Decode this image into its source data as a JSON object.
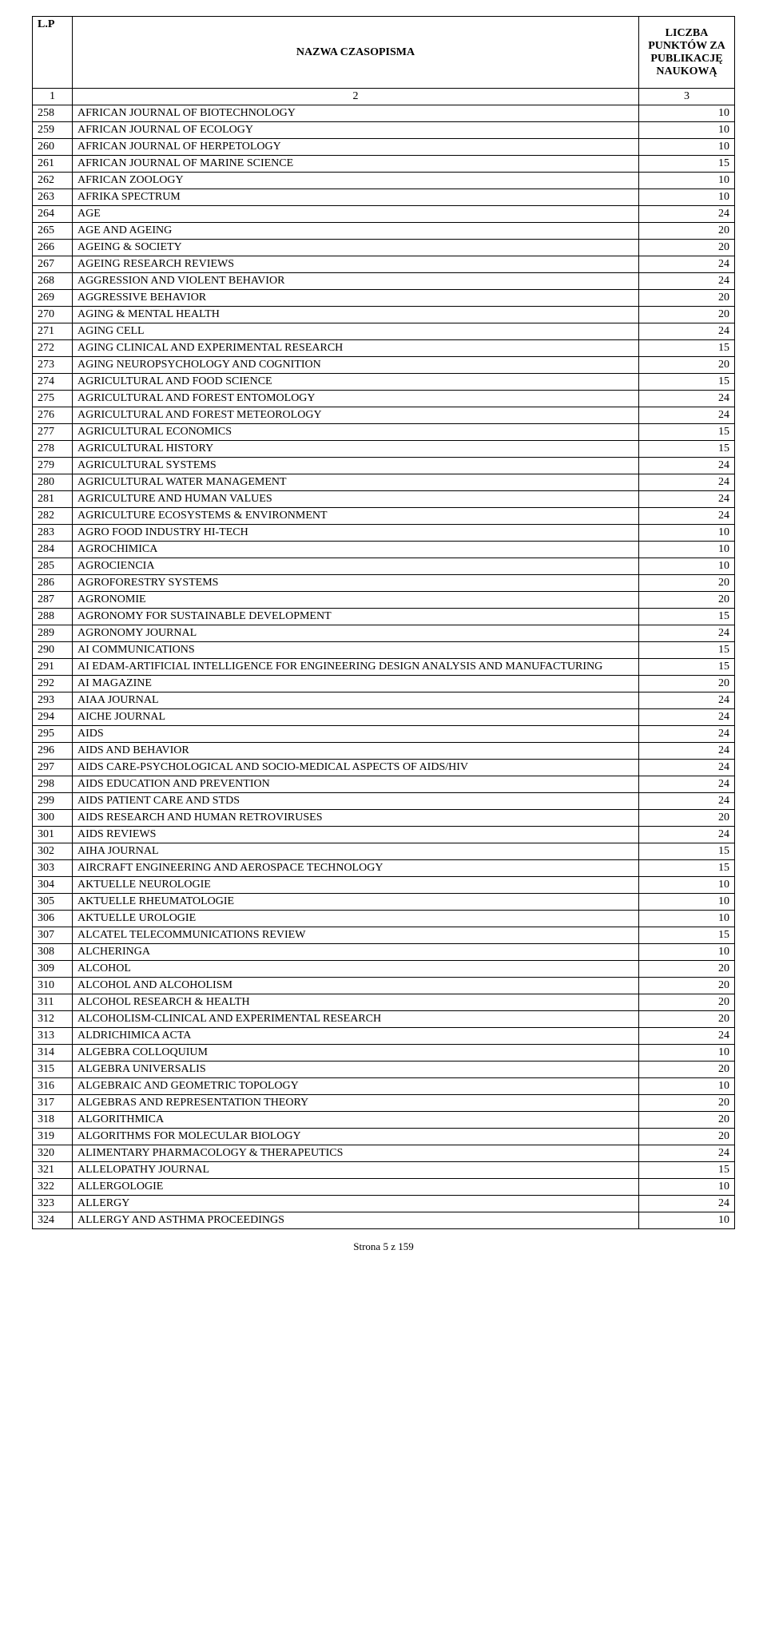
{
  "header": {
    "lp": "L.P",
    "name": "NAZWA CZASOPISMA",
    "points": "LICZBA PUNKTÓW ZA PUBLIKACJĘ NAUKOWĄ"
  },
  "subhead": {
    "c1": "1",
    "c2": "2",
    "c3": "3"
  },
  "rows": [
    {
      "n": "258",
      "t": "AFRICAN JOURNAL OF BIOTECHNOLOGY",
      "p": "10"
    },
    {
      "n": "259",
      "t": "AFRICAN JOURNAL OF ECOLOGY",
      "p": "10"
    },
    {
      "n": "260",
      "t": "AFRICAN JOURNAL OF HERPETOLOGY",
      "p": "10"
    },
    {
      "n": "261",
      "t": "AFRICAN JOURNAL OF MARINE SCIENCE",
      "p": "15"
    },
    {
      "n": "262",
      "t": "AFRICAN ZOOLOGY",
      "p": "10"
    },
    {
      "n": "263",
      "t": "AFRIKA SPECTRUM",
      "p": "10"
    },
    {
      "n": "264",
      "t": "AGE",
      "p": "24"
    },
    {
      "n": "265",
      "t": "AGE AND AGEING",
      "p": "20"
    },
    {
      "n": "266",
      "t": "AGEING & SOCIETY",
      "p": "20"
    },
    {
      "n": "267",
      "t": "AGEING RESEARCH REVIEWS",
      "p": "24"
    },
    {
      "n": "268",
      "t": "AGGRESSION AND VIOLENT BEHAVIOR",
      "p": "24"
    },
    {
      "n": "269",
      "t": "AGGRESSIVE BEHAVIOR",
      "p": "20"
    },
    {
      "n": "270",
      "t": "AGING & MENTAL HEALTH",
      "p": "20"
    },
    {
      "n": "271",
      "t": "AGING CELL",
      "p": "24"
    },
    {
      "n": "272",
      "t": "AGING CLINICAL AND EXPERIMENTAL RESEARCH",
      "p": "15"
    },
    {
      "n": "273",
      "t": "AGING NEUROPSYCHOLOGY AND COGNITION",
      "p": "20"
    },
    {
      "n": "274",
      "t": "AGRICULTURAL AND FOOD SCIENCE",
      "p": "15"
    },
    {
      "n": "275",
      "t": "AGRICULTURAL AND FOREST ENTOMOLOGY",
      "p": "24"
    },
    {
      "n": "276",
      "t": "AGRICULTURAL AND FOREST METEOROLOGY",
      "p": "24"
    },
    {
      "n": "277",
      "t": "AGRICULTURAL ECONOMICS",
      "p": "15"
    },
    {
      "n": "278",
      "t": "AGRICULTURAL HISTORY",
      "p": "15"
    },
    {
      "n": "279",
      "t": "AGRICULTURAL SYSTEMS",
      "p": "24"
    },
    {
      "n": "280",
      "t": "AGRICULTURAL WATER MANAGEMENT",
      "p": "24"
    },
    {
      "n": "281",
      "t": "AGRICULTURE AND HUMAN VALUES",
      "p": "24"
    },
    {
      "n": "282",
      "t": "AGRICULTURE ECOSYSTEMS & ENVIRONMENT",
      "p": "24"
    },
    {
      "n": "283",
      "t": "AGRO FOOD INDUSTRY HI-TECH",
      "p": "10"
    },
    {
      "n": "284",
      "t": "AGROCHIMICA",
      "p": "10"
    },
    {
      "n": "285",
      "t": "AGROCIENCIA",
      "p": "10"
    },
    {
      "n": "286",
      "t": "AGROFORESTRY SYSTEMS",
      "p": "20"
    },
    {
      "n": "287",
      "t": "AGRONOMIE",
      "p": "20"
    },
    {
      "n": "288",
      "t": "AGRONOMY FOR SUSTAINABLE DEVELOPMENT",
      "p": "15"
    },
    {
      "n": "289",
      "t": "AGRONOMY JOURNAL",
      "p": "24"
    },
    {
      "n": "290",
      "t": "AI COMMUNICATIONS",
      "p": "15"
    },
    {
      "n": "291",
      "t": "AI EDAM-ARTIFICIAL INTELLIGENCE FOR ENGINEERING DESIGN ANALYSIS AND MANUFACTURING",
      "p": "15"
    },
    {
      "n": "292",
      "t": "AI MAGAZINE",
      "p": "20"
    },
    {
      "n": "293",
      "t": "AIAA JOURNAL",
      "p": "24"
    },
    {
      "n": "294",
      "t": "AICHE JOURNAL",
      "p": "24"
    },
    {
      "n": "295",
      "t": "AIDS",
      "p": "24"
    },
    {
      "n": "296",
      "t": "AIDS AND BEHAVIOR",
      "p": "24"
    },
    {
      "n": "297",
      "t": "AIDS CARE-PSYCHOLOGICAL AND SOCIO-MEDICAL ASPECTS OF AIDS/HIV",
      "p": "24"
    },
    {
      "n": "298",
      "t": "AIDS EDUCATION AND PREVENTION",
      "p": "24"
    },
    {
      "n": "299",
      "t": "AIDS PATIENT CARE AND STDS",
      "p": "24"
    },
    {
      "n": "300",
      "t": "AIDS RESEARCH AND HUMAN RETROVIRUSES",
      "p": "20"
    },
    {
      "n": "301",
      "t": "AIDS REVIEWS",
      "p": "24"
    },
    {
      "n": "302",
      "t": "AIHA JOURNAL",
      "p": "15"
    },
    {
      "n": "303",
      "t": "AIRCRAFT ENGINEERING AND AEROSPACE TECHNOLOGY",
      "p": "15"
    },
    {
      "n": "304",
      "t": "AKTUELLE NEUROLOGIE",
      "p": "10"
    },
    {
      "n": "305",
      "t": "AKTUELLE RHEUMATOLOGIE",
      "p": "10"
    },
    {
      "n": "306",
      "t": "AKTUELLE UROLOGIE",
      "p": "10"
    },
    {
      "n": "307",
      "t": "ALCATEL TELECOMMUNICATIONS REVIEW",
      "p": "15"
    },
    {
      "n": "308",
      "t": "ALCHERINGA",
      "p": "10"
    },
    {
      "n": "309",
      "t": "ALCOHOL",
      "p": "20"
    },
    {
      "n": "310",
      "t": "ALCOHOL AND ALCOHOLISM",
      "p": "20"
    },
    {
      "n": "311",
      "t": "ALCOHOL RESEARCH & HEALTH",
      "p": "20"
    },
    {
      "n": "312",
      "t": "ALCOHOLISM-CLINICAL AND EXPERIMENTAL RESEARCH",
      "p": "20"
    },
    {
      "n": "313",
      "t": "ALDRICHIMICA ACTA",
      "p": "24"
    },
    {
      "n": "314",
      "t": "ALGEBRA COLLOQUIUM",
      "p": "10"
    },
    {
      "n": "315",
      "t": "ALGEBRA UNIVERSALIS",
      "p": "20"
    },
    {
      "n": "316",
      "t": "ALGEBRAIC AND GEOMETRIC TOPOLOGY",
      "p": "10"
    },
    {
      "n": "317",
      "t": "ALGEBRAS AND REPRESENTATION THEORY",
      "p": "20"
    },
    {
      "n": "318",
      "t": "ALGORITHMICA",
      "p": "20"
    },
    {
      "n": "319",
      "t": "ALGORITHMS FOR MOLECULAR BIOLOGY",
      "p": "20"
    },
    {
      "n": "320",
      "t": "ALIMENTARY PHARMACOLOGY & THERAPEUTICS",
      "p": "24"
    },
    {
      "n": "321",
      "t": "ALLELOPATHY JOURNAL",
      "p": "15"
    },
    {
      "n": "322",
      "t": "ALLERGOLOGIE",
      "p": "10"
    },
    {
      "n": "323",
      "t": "ALLERGY",
      "p": "24"
    },
    {
      "n": "324",
      "t": "ALLERGY AND ASTHMA PROCEEDINGS",
      "p": "10"
    }
  ],
  "footer": "Strona 5 z 159"
}
